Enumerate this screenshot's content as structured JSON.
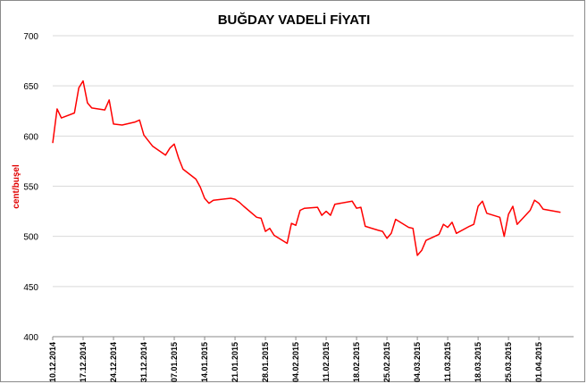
{
  "chart_data": {
    "type": "line",
    "title": "BUĞDAY VADELİ FİYATI",
    "xlabel": "",
    "ylabel": "cent/buşel",
    "ylim": [
      400,
      700
    ],
    "yticks": [
      400,
      450,
      500,
      550,
      600,
      650,
      700
    ],
    "grid": true,
    "legend": "none",
    "line_color": "#ff0000",
    "x_tick_labels": [
      "10.12.2014",
      "17.12.2014",
      "24.12.2014",
      "31.12.2014",
      "07.01.2015",
      "14.01.2015",
      "21.01.2015",
      "28.01.2015",
      "04.02.2015",
      "11.02.2015",
      "18.02.2015",
      "25.02.2015",
      "04.03.2015",
      "11.03.2015",
      "18.03.2015",
      "25.03.2015",
      "01.04.2015"
    ],
    "x": [
      "10.12.2014",
      "11.12.2014",
      "12.12.2014",
      "15.12.2014",
      "16.12.2014",
      "17.12.2014",
      "18.12.2014",
      "19.12.2014",
      "22.12.2014",
      "23.12.2014",
      "24.12.2014",
      "26.12.2014",
      "29.12.2014",
      "30.12.2014",
      "31.12.2014",
      "02.01.2015",
      "05.01.2015",
      "06.01.2015",
      "07.01.2015",
      "08.01.2015",
      "09.01.2015",
      "12.01.2015",
      "13.01.2015",
      "14.01.2015",
      "15.01.2015",
      "16.01.2015",
      "20.01.2015",
      "21.01.2015",
      "22.01.2015",
      "23.01.2015",
      "26.01.2015",
      "27.01.2015",
      "28.01.2015",
      "29.01.2015",
      "30.01.2015",
      "02.02.2015",
      "03.02.2015",
      "04.02.2015",
      "05.02.2015",
      "06.02.2015",
      "09.02.2015",
      "10.02.2015",
      "11.02.2015",
      "12.02.2015",
      "13.02.2015",
      "17.02.2015",
      "18.02.2015",
      "19.02.2015",
      "20.02.2015",
      "23.02.2015",
      "24.02.2015",
      "25.02.2015",
      "26.02.2015",
      "27.02.2015",
      "02.03.2015",
      "03.03.2015",
      "04.03.2015",
      "05.03.2015",
      "06.03.2015",
      "09.03.2015",
      "10.03.2015",
      "11.03.2015",
      "12.03.2015",
      "13.03.2015",
      "16.03.2015",
      "17.03.2015",
      "18.03.2015",
      "19.03.2015",
      "20.03.2015",
      "23.03.2015",
      "24.03.2015",
      "25.03.2015",
      "26.03.2015",
      "27.03.2015",
      "30.03.2015",
      "31.03.2015",
      "01.04.2015",
      "02.04.2015",
      "06.04.2015"
    ],
    "series": [
      {
        "values": [
          593,
          627,
          618,
          623,
          648,
          655,
          633,
          628,
          626,
          636,
          612,
          611,
          614,
          616,
          601,
          590,
          581,
          588,
          592,
          578,
          567,
          557,
          549,
          538,
          533,
          536,
          538,
          537,
          534,
          530,
          519,
          518,
          505,
          508,
          501,
          493,
          513,
          511,
          526,
          528,
          529,
          521,
          525,
          521,
          532,
          535,
          528,
          529,
          510,
          506,
          505,
          498,
          503,
          517,
          509,
          508,
          481,
          486,
          496,
          502,
          512,
          509,
          514,
          503,
          510,
          512,
          530,
          535,
          523,
          519,
          500,
          522,
          530,
          512,
          526,
          536,
          533,
          527,
          524
        ]
      }
    ]
  }
}
